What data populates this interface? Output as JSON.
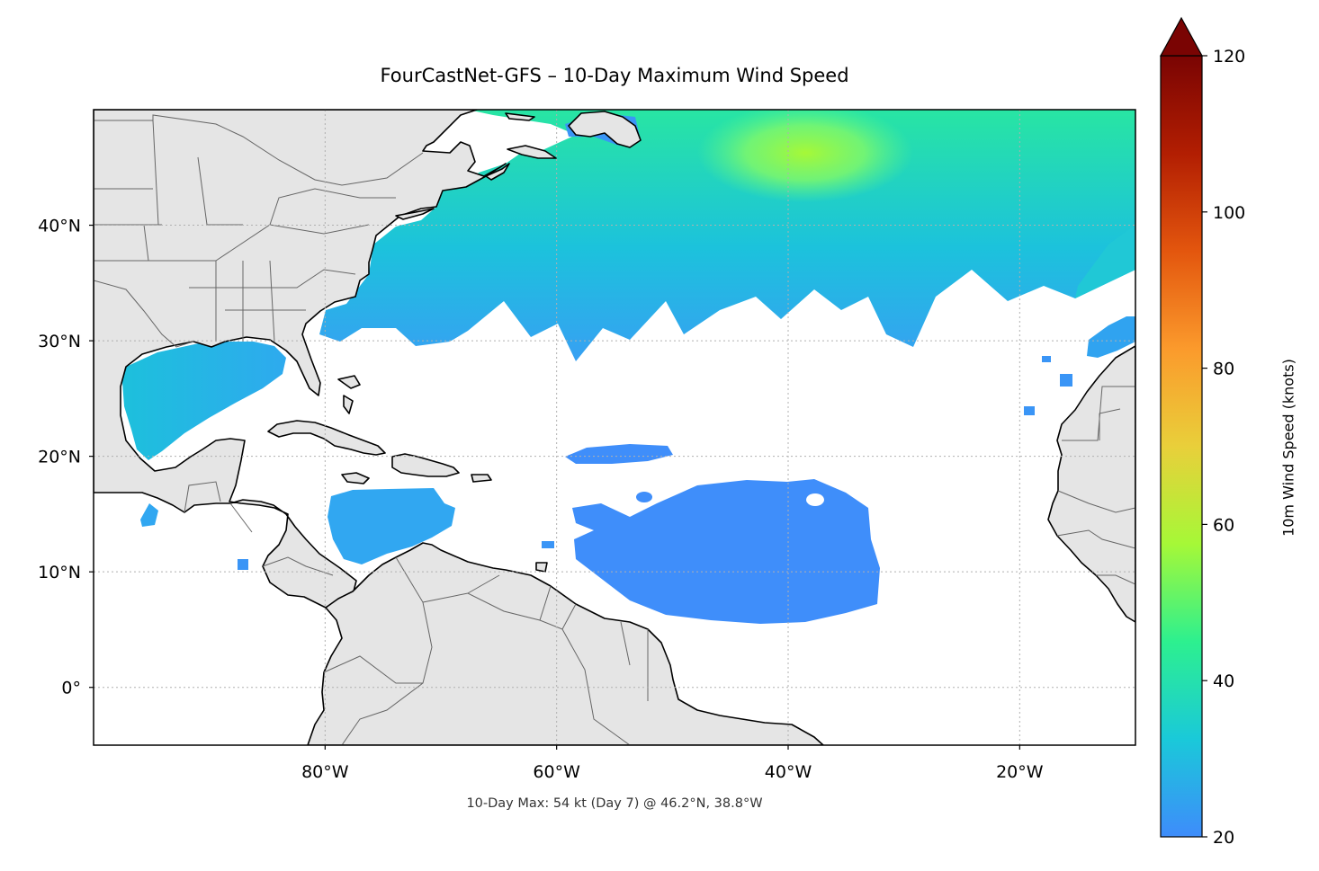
{
  "map": {
    "title": "FourCastNet-GFS – 10-Day Maximum Wind Speed",
    "footnote": "10-Day Max: 54 kt (Day 7) @ 46.2°N, 38.8°W",
    "extent": {
      "lon_min": -100,
      "lon_max": -10,
      "lat_min": -5,
      "lat_max": 50
    },
    "lon_ticks": [
      {
        "value": -80,
        "label": "80°W"
      },
      {
        "value": -60,
        "label": "60°W"
      },
      {
        "value": -40,
        "label": "40°W"
      },
      {
        "value": -20,
        "label": "20°W"
      }
    ],
    "lat_ticks": [
      {
        "value": 40,
        "label": "40°N"
      },
      {
        "value": 30,
        "label": "30°N"
      },
      {
        "value": 20,
        "label": "20°N"
      },
      {
        "value": 10,
        "label": "10°N"
      },
      {
        "value": 0,
        "label": "0°"
      }
    ],
    "colors": {
      "land": "#e5e5e5",
      "coastline": "#000000",
      "borders": "#666666",
      "gridlines": "#b0b0b0"
    }
  },
  "colorbar": {
    "label": "10m Wind Speed (knots)",
    "min": 20,
    "max": 120,
    "extend": "max",
    "extend_color": "#7a0403",
    "ticks": [
      {
        "value": 20,
        "label": "20"
      },
      {
        "value": 40,
        "label": "40"
      },
      {
        "value": 60,
        "label": "60"
      },
      {
        "value": 80,
        "label": "80"
      },
      {
        "value": 100,
        "label": "100"
      },
      {
        "value": 120,
        "label": "120"
      }
    ],
    "colormap": "turbo",
    "stops": [
      "#3e8cfb",
      "#1ac9d9",
      "#2df08f",
      "#a6f837",
      "#e9cf3a",
      "#fb9a2c",
      "#e3560e",
      "#b21e02",
      "#7a0403"
    ]
  },
  "wind_field": {
    "units": "knots",
    "maximum": {
      "value": 54,
      "day": 7,
      "lat": 46.2,
      "lon": -38.8
    },
    "regions": [
      {
        "name": "north-atlantic-band",
        "min_kt": 24,
        "max_kt": 54
      },
      {
        "name": "gulf-of-mexico",
        "min_kt": 26,
        "max_kt": 30
      },
      {
        "name": "caribbean-sea",
        "min_kt": 22,
        "max_kt": 25
      },
      {
        "name": "tropical-atlantic",
        "min_kt": 20,
        "max_kt": 22
      },
      {
        "name": "canary-islands",
        "min_kt": 21,
        "max_kt": 23
      }
    ]
  }
}
